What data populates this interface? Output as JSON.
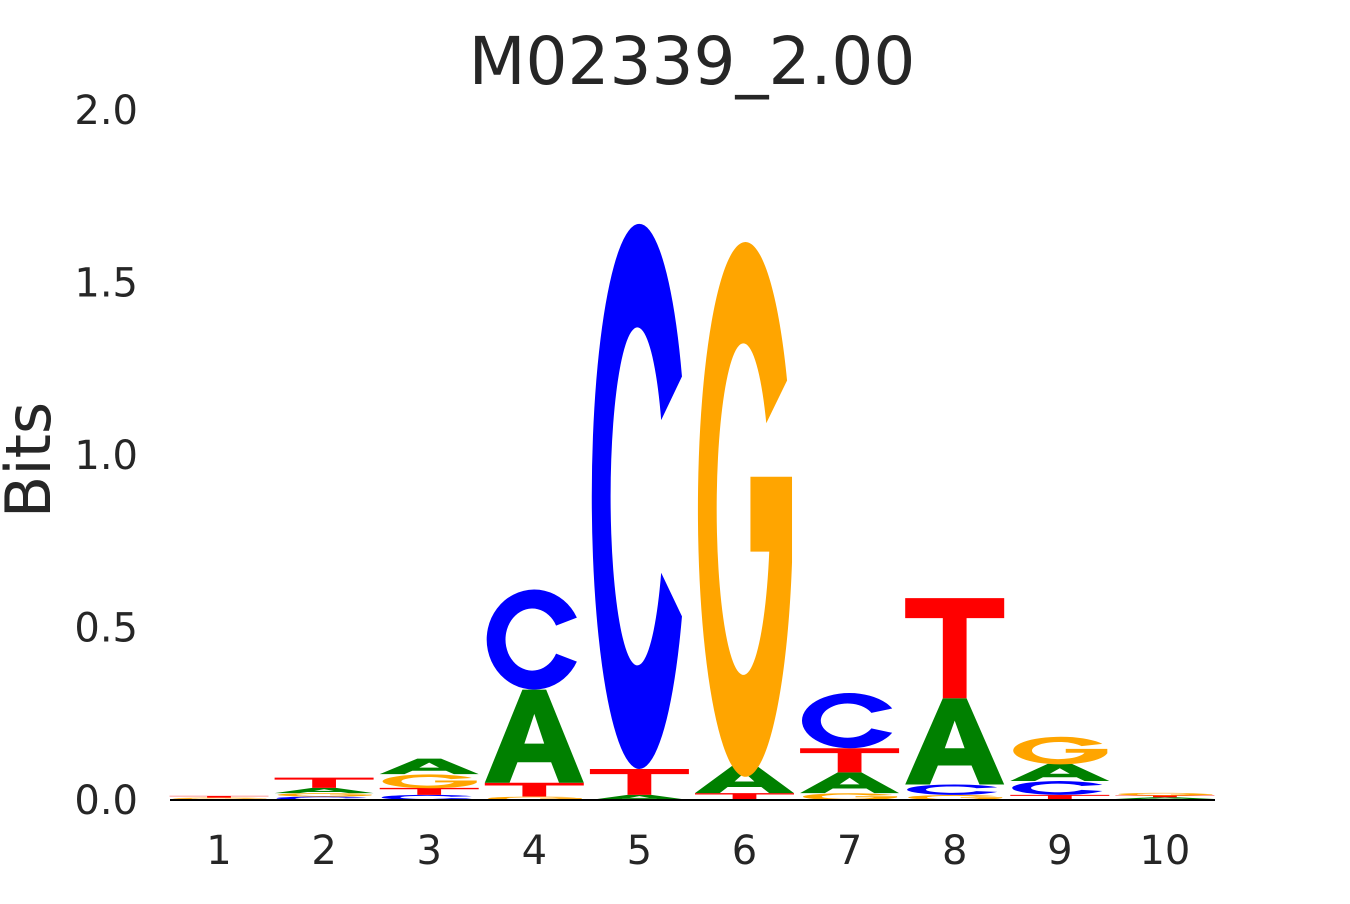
{
  "chart_data": {
    "type": "sequence-logo",
    "title": "M02339_2.00",
    "xlabel": "",
    "ylabel": "Bits",
    "ylim": [
      0,
      2.0
    ],
    "yticks": [
      "0.0",
      "0.5",
      "1.0",
      "1.5",
      "2.0"
    ],
    "ytick_values": [
      0,
      0.5,
      1.0,
      1.5,
      2.0
    ],
    "categories": [
      "1",
      "2",
      "3",
      "4",
      "5",
      "6",
      "7",
      "8",
      "9",
      "10"
    ],
    "grid": false,
    "colors": {
      "A": "#008000",
      "C": "#0000ff",
      "G": "#ffa500",
      "T": "#ff0000"
    },
    "positions": [
      {
        "pos": "1",
        "stack": [
          [
            "A",
            0.003
          ],
          [
            "G",
            0.004
          ],
          [
            "T",
            0.005
          ]
        ]
      },
      {
        "pos": "2",
        "stack": [
          [
            "C",
            0.01
          ],
          [
            "G",
            0.01
          ],
          [
            "A",
            0.015
          ],
          [
            "T",
            0.03
          ]
        ]
      },
      {
        "pos": "3",
        "stack": [
          [
            "C",
            0.015
          ],
          [
            "T",
            0.02
          ],
          [
            "G",
            0.04
          ],
          [
            "A",
            0.045
          ]
        ]
      },
      {
        "pos": "4",
        "stack": [
          [
            "G",
            0.01
          ],
          [
            "T",
            0.04
          ],
          [
            "A",
            0.27
          ],
          [
            "C",
            0.29
          ]
        ]
      },
      {
        "pos": "5",
        "stack": [
          [
            "A",
            0.015
          ],
          [
            "T",
            0.075
          ],
          [
            "C",
            1.58
          ]
        ]
      },
      {
        "pos": "6",
        "stack": [
          [
            "T",
            0.02
          ],
          [
            "A",
            0.08
          ],
          [
            "G",
            1.55
          ]
        ]
      },
      {
        "pos": "7",
        "stack": [
          [
            "G",
            0.02
          ],
          [
            "A",
            0.06
          ],
          [
            "T",
            0.07
          ],
          [
            "C",
            0.16
          ]
        ]
      },
      {
        "pos": "8",
        "stack": [
          [
            "G",
            0.015
          ],
          [
            "C",
            0.03
          ],
          [
            "A",
            0.25
          ],
          [
            "T",
            0.29
          ]
        ]
      },
      {
        "pos": "9",
        "stack": [
          [
            "T",
            0.015
          ],
          [
            "C",
            0.04
          ],
          [
            "A",
            0.05
          ],
          [
            "G",
            0.08
          ]
        ]
      },
      {
        "pos": "10",
        "stack": [
          [
            "C",
            0.003
          ],
          [
            "A",
            0.005
          ],
          [
            "T",
            0.005
          ],
          [
            "G",
            0.008
          ]
        ]
      }
    ]
  }
}
